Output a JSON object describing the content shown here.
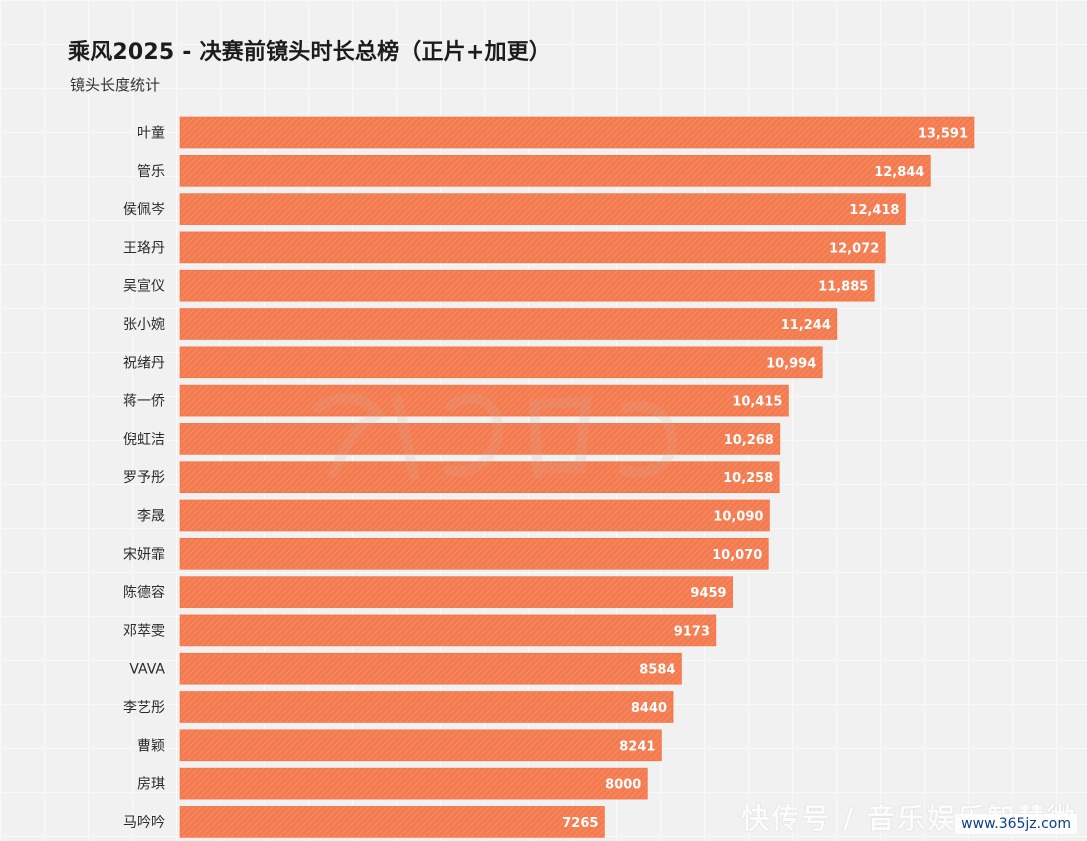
{
  "header": {
    "title": "乘风2025 - 决赛前镜头时长总榜（正片+加更）",
    "subtitle": "镜头长度统计"
  },
  "watermarks": {
    "bottom_text": "快传号 / 音乐娱乐智慧微",
    "url": "www.365jz.com"
  },
  "colors": {
    "bar": "#f47b4f",
    "bar_stroke": "#f36f40",
    "label": "#2a2a2a",
    "value_text": "#ffffff"
  },
  "chart_data": {
    "type": "bar",
    "orientation": "horizontal",
    "title": "乘风2025 - 决赛前镜头时长总榜（正片+加更）",
    "subtitle": "镜头长度统计",
    "categories": [
      "叶童",
      "管乐",
      "侯佩岑",
      "王珞丹",
      "吴宣仪",
      "张小婉",
      "祝绪丹",
      "蒋一侨",
      "倪虹洁",
      "罗予彤",
      "李晟",
      "宋妍霏",
      "陈德容",
      "邓萃雯",
      "VAVA",
      "李艺彤",
      "曹颖",
      "房琪",
      "马吟吟"
    ],
    "values": [
      13591,
      12844,
      12418,
      12072,
      11885,
      11244,
      10994,
      10415,
      10268,
      10258,
      10090,
      10070,
      9459,
      9173,
      8584,
      8440,
      8241,
      8000,
      7265
    ],
    "value_labels": [
      "13,591",
      "12,844",
      "12,418",
      "12,072",
      "11,885",
      "11,244",
      "10,994",
      "10,415",
      "10,268",
      "10,258",
      "10,090",
      "10,070",
      "9459",
      "9173",
      "8584",
      "8440",
      "8241",
      "8000",
      "7265"
    ],
    "xlim": [
      0,
      13591
    ],
    "grid": false,
    "legend": "none"
  }
}
